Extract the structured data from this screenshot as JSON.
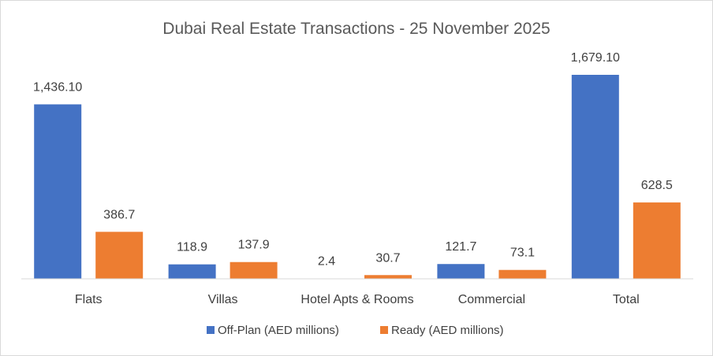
{
  "chart_data": {
    "type": "bar",
    "title": "Dubai Real Estate Transactions - 25 November 2025",
    "categories": [
      "Flats",
      "Villas",
      "Hotel Apts & Rooms",
      "Commercial",
      "Total"
    ],
    "series": [
      {
        "name": "Off-Plan (AED millions)",
        "color": "#4472c4",
        "values": [
          1436.1,
          118.9,
          2.4,
          121.7,
          1679.1
        ],
        "labels": [
          "1,436.10",
          "118.9",
          "2.4",
          "121.7",
          "1,679.10"
        ]
      },
      {
        "name": "Ready (AED millions)",
        "color": "#ed7d31",
        "values": [
          386.7,
          137.9,
          30.7,
          73.1,
          628.5
        ],
        "labels": [
          "386.7",
          "137.9",
          "30.7",
          "73.1",
          "628.5"
        ]
      }
    ],
    "xlabel": "",
    "ylabel": "",
    "ylim": [
      0,
      1800
    ],
    "grid": false,
    "legend": "bottom"
  }
}
